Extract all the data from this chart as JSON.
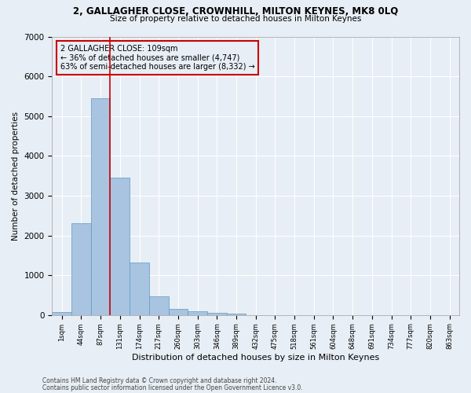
{
  "title1": "2, GALLAGHER CLOSE, CROWNHILL, MILTON KEYNES, MK8 0LQ",
  "title2": "Size of property relative to detached houses in Milton Keynes",
  "xlabel": "Distribution of detached houses by size in Milton Keynes",
  "ylabel": "Number of detached properties",
  "footer1": "Contains HM Land Registry data © Crown copyright and database right 2024.",
  "footer2": "Contains public sector information licensed under the Open Government Licence v3.0.",
  "bar_color": "#a8c4e0",
  "bar_edge_color": "#5a9bc4",
  "background_color": "#e8eef5",
  "grid_color": "#ffffff",
  "annotation_box_color": "#cc0000",
  "vline_color": "#cc0000",
  "categories": [
    "1sqm",
    "44sqm",
    "87sqm",
    "131sqm",
    "174sqm",
    "217sqm",
    "260sqm",
    "303sqm",
    "346sqm",
    "389sqm",
    "432sqm",
    "475sqm",
    "518sqm",
    "561sqm",
    "604sqm",
    "648sqm",
    "691sqm",
    "734sqm",
    "777sqm",
    "820sqm",
    "863sqm"
  ],
  "values": [
    80,
    2300,
    5450,
    3450,
    1310,
    470,
    155,
    85,
    50,
    30,
    0,
    0,
    0,
    0,
    0,
    0,
    0,
    0,
    0,
    0,
    0
  ],
  "ylim": [
    0,
    7000
  ],
  "property_name": "2 GALLAGHER CLOSE: 109sqm",
  "annotation_line1": "← 36% of detached houses are smaller (4,747)",
  "annotation_line2": "63% of semi-detached houses are larger (8,332) →",
  "vline_position": 2.5,
  "yticks": [
    0,
    1000,
    2000,
    3000,
    4000,
    5000,
    6000,
    7000
  ]
}
